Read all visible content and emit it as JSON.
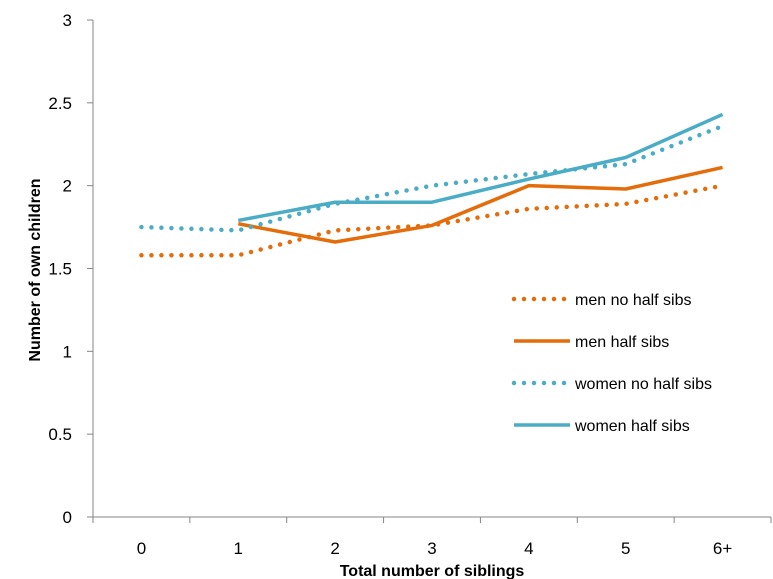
{
  "chart_data": {
    "type": "line",
    "xlabel": "Total number of siblings",
    "ylabel": "Number of own children",
    "categories": [
      "0",
      "1",
      "2",
      "3",
      "4",
      "5",
      "6+"
    ],
    "ylim": [
      0,
      3
    ],
    "yticks": [
      "0",
      "0.5",
      "1",
      "1.5",
      "2",
      "2.5",
      "3"
    ],
    "grid": false,
    "legend_position": "bottom-right",
    "series": [
      {
        "name": "men no half sibs",
        "color": "#e46c0a",
        "style": "dotted",
        "values": [
          1.58,
          1.58,
          1.73,
          1.76,
          1.86,
          1.89,
          2.0
        ]
      },
      {
        "name": "men half sibs",
        "color": "#e46c0a",
        "style": "solid",
        "values": [
          null,
          1.77,
          1.66,
          1.76,
          2.0,
          1.98,
          2.11
        ]
      },
      {
        "name": "women no half sibs",
        "color": "#4bacc6",
        "style": "dotted",
        "values": [
          1.75,
          1.73,
          1.89,
          2.0,
          2.07,
          2.13,
          2.36
        ]
      },
      {
        "name": "women half sibs",
        "color": "#4bacc6",
        "style": "solid",
        "values": [
          null,
          1.79,
          1.9,
          1.9,
          2.04,
          2.17,
          2.43
        ]
      }
    ]
  }
}
